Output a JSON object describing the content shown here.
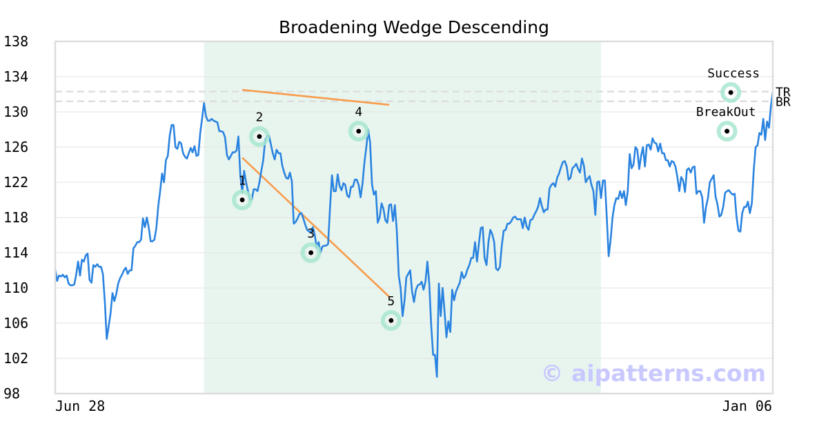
{
  "chart_data": {
    "type": "line",
    "title": "Broadening Wedge Descending",
    "xlabel": "",
    "ylabel": "",
    "ylim": [
      98,
      138
    ],
    "y_ticks": [
      98,
      102,
      106,
      110,
      114,
      118,
      122,
      126,
      130,
      134,
      138
    ],
    "x_tick_labels": [
      "Jun 28",
      "Jan 06"
    ],
    "grid": "horizontal",
    "line_color": "#2a83e0",
    "trend_color": "#f79b4a",
    "highlight_color": "#e8f5ef",
    "marker_ring_color": "#a8e6cf",
    "watermark": "© aipatterns.com",
    "pattern_window": {
      "start_index": 78,
      "end_index": 286
    },
    "price": [
      112.1,
      110.8,
      111.4,
      111.3,
      111.5,
      111.2,
      111.4,
      110.5,
      110.3,
      110.3,
      110.4,
      111.5,
      113.0,
      111.4,
      113.2,
      113.0,
      113.7,
      113.9,
      110.9,
      110.6,
      112.6,
      112.4,
      112.7,
      112.4,
      112.4,
      111.6,
      108.5,
      104.2,
      105.6,
      107.1,
      109.4,
      108.5,
      109.3,
      110.5,
      111.1,
      111.5,
      112.0,
      112.3,
      111.6,
      112.0,
      112.0,
      114.5,
      114.8,
      115.2,
      115.2,
      115.5,
      117.9,
      116.9,
      118.0,
      116.9,
      115.3,
      115.3,
      115.5,
      116.8,
      119.3,
      121.0,
      123.0,
      122.0,
      124.5,
      125.0,
      127.3,
      128.5,
      128.5,
      126.0,
      125.8,
      126.6,
      126.4,
      125.3,
      124.9,
      124.7,
      125.3,
      125.9,
      125.4,
      126.1,
      125.0,
      125.1,
      127.6,
      129.3,
      131.0,
      129.5,
      129.0,
      129.0,
      129.2,
      129.0,
      128.9,
      128.8,
      127.8,
      127.8,
      127.7,
      127.1,
      125.1,
      124.6,
      125.0,
      125.4,
      125.4,
      125.6,
      127.2,
      122.8,
      120.8,
      123.3,
      122.0,
      121.0,
      120.0,
      120.0,
      121.2,
      121.2,
      121.0,
      122.0,
      123.3,
      124.5,
      126.8,
      127.2,
      127.3,
      126.3,
      125.3,
      124.6,
      125.7,
      125.3,
      125.3,
      123.9,
      123.1,
      122.5,
      122.4,
      123.1,
      122.1,
      117.3,
      117.5,
      117.9,
      118.4,
      118.5,
      117.9,
      117.2,
      116.6,
      116.4,
      116.4,
      116.9,
      116.0,
      114.6,
      115.2,
      114.0,
      114.7,
      114.8,
      114.8,
      115.0,
      119.1,
      122.8,
      121.0,
      121.0,
      122.9,
      121.6,
      121.1,
      121.9,
      121.7,
      120.5,
      120.3,
      121.5,
      121.5,
      122.3,
      122.3,
      121.7,
      120.3,
      121.8,
      124.2,
      126.0,
      128.0,
      126.5,
      121.8,
      120.6,
      121.0,
      117.4,
      118.0,
      119.6,
      119.0,
      117.7,
      117.4,
      119.4,
      119.5,
      117.6,
      119.4,
      116.5,
      111.4,
      110.0,
      106.8,
      108.5,
      111.2,
      111.6,
      112.0,
      109.6,
      108.4,
      109.8,
      110.3,
      110.4,
      110.7,
      109.8,
      110.7,
      113.0,
      110.5,
      105.8,
      102.4,
      102.4,
      99.9,
      110.5,
      106.8,
      110.0,
      107.3,
      104.4,
      106.2,
      105.0,
      109.8,
      108.6,
      109.6,
      110.1,
      110.6,
      111.8,
      111.1,
      111.4,
      112.1,
      112.6,
      113.4,
      113.4,
      115.2,
      113.0,
      115.0,
      116.8,
      116.9,
      113.4,
      112.6,
      115.2,
      116.6,
      116.1,
      115.2,
      112.2,
      112.0,
      112.4,
      114.8,
      116.5,
      116.6,
      117.3,
      117.3,
      117.6,
      118.0,
      118.1,
      117.8,
      117.8,
      117.8,
      116.8,
      118.0,
      117.0,
      116.6,
      117.7,
      117.8,
      118.3,
      118.7,
      119.2,
      120.2,
      119.3,
      118.6,
      118.9,
      118.9,
      121.3,
      121.7,
      121.9,
      121.5,
      122.5,
      123.0,
      123.7,
      124.3,
      124.4,
      123.8,
      122.3,
      122.5,
      123.6,
      123.8,
      124.1,
      123.5,
      123.1,
      124.7,
      123.9,
      122.0,
      122.4,
      122.7,
      121.7,
      121.0,
      118.3,
      122.0,
      122.1,
      120.2,
      122.2,
      122.2,
      118.0,
      113.6,
      115.4,
      118.0,
      119.4,
      120.2,
      120.1,
      121.0,
      120.2,
      121.0,
      119.4,
      121.0,
      125.2,
      123.6,
      124.0,
      126.0,
      125.7,
      123.5,
      125.0,
      126.0,
      123.8,
      126.2,
      126.3,
      125.7,
      127.0,
      126.5,
      126.4,
      125.5,
      126.4,
      125.3,
      125.3,
      124.5,
      124.5,
      123.8,
      124.4,
      124.3,
      123.8,
      122.6,
      121.0,
      122.6,
      122.2,
      120.9,
      123.4,
      123.6,
      123.1,
      123.7,
      123.8,
      120.7,
      121.0,
      121.0,
      120.3,
      117.4,
      119.2,
      120.2,
      122.0,
      122.4,
      122.8,
      120.4,
      119.5,
      118.1,
      118.3,
      119.2,
      120.8,
      121.0,
      121.1,
      120.8,
      120.6,
      120.7,
      118.1,
      116.5,
      116.4,
      118.5,
      119.2,
      119.2,
      119.8,
      118.5,
      119.6,
      123.3,
      126.0,
      126.2,
      127.6,
      127.4,
      129.2,
      126.8,
      128.9,
      128.2,
      130.6,
      132.3
    ],
    "wedge_lines": [
      {
        "name": "upper",
        "from": {
          "index": 98,
          "value": 132.5
        },
        "to": {
          "index": 175,
          "value": 130.8
        }
      },
      {
        "name": "lower",
        "from": {
          "index": 98,
          "value": 124.8
        },
        "to": {
          "index": 175,
          "value": 109.0
        }
      }
    ],
    "levels": [
      {
        "label": "TR",
        "value": 132.3
      },
      {
        "label": "BR",
        "value": 131.2
      }
    ],
    "points": [
      {
        "label": "1",
        "index": 98,
        "value": 120.0,
        "label_pos": "above"
      },
      {
        "label": "2",
        "index": 107,
        "value": 127.2,
        "label_pos": "above"
      },
      {
        "label": "3",
        "index": 134,
        "value": 114.0,
        "label_pos": "above"
      },
      {
        "label": "4",
        "index": 159,
        "value": 127.8,
        "label_pos": "above"
      },
      {
        "label": "5",
        "index": 176,
        "value": 106.3,
        "label_pos": "above"
      },
      {
        "label": "BreakOut",
        "index": 352,
        "value": 127.8,
        "label_pos": "above"
      },
      {
        "label": "Success",
        "index": 354,
        "value": 132.2,
        "label_pos": "above"
      }
    ]
  }
}
